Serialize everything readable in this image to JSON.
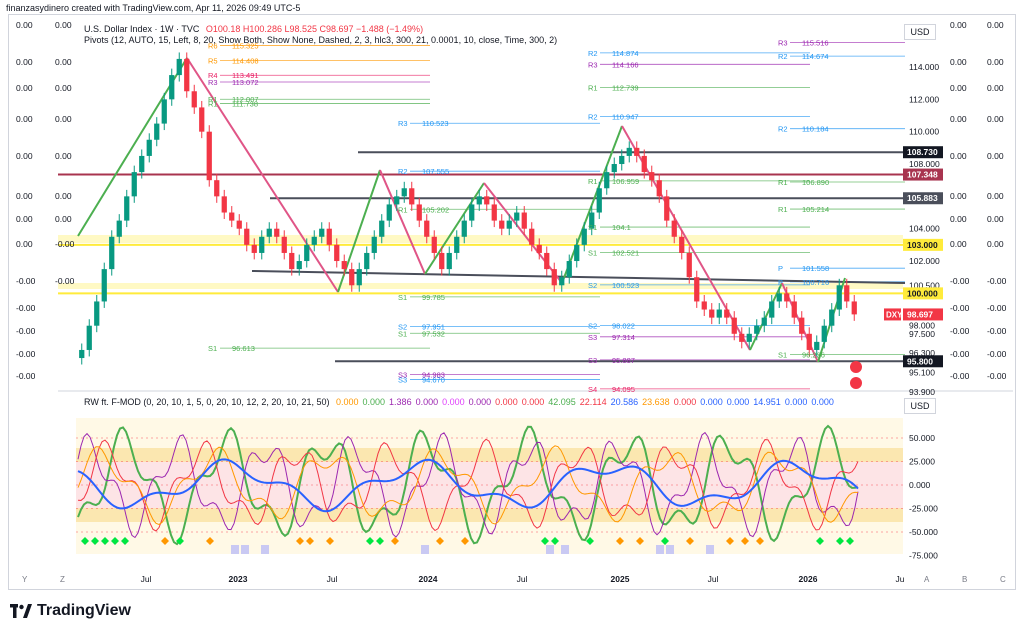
{
  "header_text": "finanzasydinero created with TradingView.com, Apr 11, 2026 09:49 UTC-5",
  "main_title": {
    "symbol": "U.S. Dollar Index · 1W · TVC",
    "ohlc": "O100.18 H100.286 L98.525 C98.697 −1.488 (−1.49%)"
  },
  "pivots_label": "Pivots (12, AUTO, 15, Left, 8, 20, Show Both, Show None, Dashed, 2, 3, hlc3, 300, 21, 0.0001, 10, close, Time, 300, 2)",
  "oscillator_label": "RW ft. F-MOD (0, 20, 10, 1, 5, 0, 20, 10, 12, 2, 20, 10, 21, 50)",
  "oscillator_values": [
    {
      "v": "0.000",
      "c": "#ff9800"
    },
    {
      "v": "0.000",
      "c": "#4caf50"
    },
    {
      "v": "1.386",
      "c": "#9c27b0"
    },
    {
      "v": "0.000",
      "c": "#9c27b0"
    },
    {
      "v": "0.000",
      "c": "#e040fb"
    },
    {
      "v": "0.000",
      "c": "#9c27b0"
    },
    {
      "v": "0.000",
      "c": "#f23645"
    },
    {
      "v": "0.000",
      "c": "#f23645"
    },
    {
      "v": "42.095",
      "c": "#4caf50"
    },
    {
      "v": "22.114",
      "c": "#f23645"
    },
    {
      "v": "20.586",
      "c": "#2962ff"
    },
    {
      "v": "23.638",
      "c": "#ff9800"
    },
    {
      "v": "0.000",
      "c": "#f23645"
    },
    {
      "v": "0.000",
      "c": "#2962ff"
    },
    {
      "v": "0.000",
      "c": "#2962ff"
    },
    {
      "v": "14.951",
      "c": "#2962ff"
    },
    {
      "v": "0.000",
      "c": "#2962ff"
    },
    {
      "v": "0.000",
      "c": "#2962ff"
    }
  ],
  "currency_label": "USD",
  "currency_label_osc": "USD",
  "brand": "TradingView",
  "left_axis_values": [
    "0.00",
    "0.00",
    "0.00",
    "0.00",
    "0.00",
    "0.00",
    "0.00",
    "0.00",
    "-0.00",
    "-0.00",
    "-0.00",
    "-0.00",
    "-0.00",
    "-0.00",
    "-0.00",
    "-0.00",
    "-0.00"
  ],
  "right_axis_values": [
    "0.00",
    "0.00",
    "0.00",
    "0.00",
    "0.00",
    "0.00",
    "0.00",
    "0.00",
    "-0.00",
    "-0.00",
    "-0.00",
    "-0.00",
    "-0.00",
    "-0.00",
    "-0.00",
    "-0.00",
    "-0.00"
  ],
  "bottom_letters_left": [
    "Y",
    "Z"
  ],
  "bottom_letters_right": [
    "A",
    "B",
    "C"
  ],
  "chart_data": {
    "type": "candlestick",
    "symbol": "DXY",
    "timeframe": "1W",
    "x_axis_labels": [
      "Jul",
      "2023",
      "Jul",
      "2024",
      "Jul",
      "2025",
      "Jul",
      "2026",
      "Ju"
    ],
    "y_axis_ticks": [
      "114.000",
      "112.000",
      "110.000",
      "108.000",
      "106.000",
      "104.000",
      "102.000",
      "100.500",
      "98.000",
      "97.500",
      "96.300",
      "95.100",
      "93.900"
    ],
    "ylim": [
      93.9,
      116.5
    ],
    "close_series": [
      96.5,
      98.0,
      99.5,
      101.5,
      103.5,
      104.5,
      106.0,
      107.5,
      108.5,
      109.5,
      110.5,
      112.0,
      113.5,
      114.5,
      112.5,
      111.5,
      110.0,
      107.0,
      106.0,
      105.0,
      104.5,
      104.0,
      103.0,
      102.5,
      103.5,
      104.0,
      103.5,
      102.5,
      101.5,
      102.0,
      103.0,
      103.5,
      104.0,
      103.0,
      102.0,
      101.5,
      100.5,
      101.5,
      102.5,
      103.5,
      104.5,
      105.5,
      106.0,
      106.5,
      105.5,
      104.5,
      103.5,
      102.5,
      101.5,
      102.5,
      103.5,
      104.5,
      105.5,
      106.0,
      105.5,
      104.5,
      104.0,
      104.5,
      105.0,
      104.0,
      103.0,
      102.5,
      101.5,
      100.5,
      101.0,
      102.0,
      103.0,
      104.0,
      105.0,
      106.5,
      107.5,
      108.0,
      108.5,
      109.0,
      108.5,
      107.5,
      107.0,
      106.0,
      104.5,
      103.5,
      102.5,
      101.0,
      99.5,
      99.0,
      98.5,
      99.0,
      98.5,
      97.5,
      97.0,
      97.5,
      98.0,
      98.5,
      99.5,
      100.0,
      99.5,
      98.5,
      97.5,
      96.5,
      97.0,
      98.0,
      99.0,
      100.5,
      99.5,
      98.7
    ],
    "current_price": "98.697",
    "highlighted_prices": [
      {
        "value": "108.730",
        "color": "#131722"
      },
      {
        "value": "107.348",
        "color": "#a8344f"
      },
      {
        "value": "105.883",
        "color": "#4a4e5a"
      },
      {
        "value": "103.000",
        "color": "#ffeb3b"
      },
      {
        "value": "100.000",
        "color": "#ffeb3b"
      },
      {
        "value": "95.800",
        "color": "#131722"
      }
    ],
    "pivot_labels": [
      {
        "name": "R6",
        "value": "115.325"
      },
      {
        "name": "R5",
        "value": "114.408"
      },
      {
        "name": "R4",
        "value": "113.491"
      },
      {
        "name": "R3",
        "value": "113.072"
      },
      {
        "name": "R2",
        "value": "114.874"
      },
      {
        "name": "R3",
        "value": "114.166"
      },
      {
        "name": "R3",
        "value": "115.516"
      },
      {
        "name": "R2",
        "value": "114.674"
      },
      {
        "name": "R1",
        "value": "111.738"
      },
      {
        "name": "R1",
        "value": "112.007"
      },
      {
        "name": "R1",
        "value": "112.739"
      },
      {
        "name": "R2",
        "value": "110.947"
      },
      {
        "name": "R2",
        "value": "110.184"
      },
      {
        "name": "R3",
        "value": "110.523"
      },
      {
        "name": "R2",
        "value": "107.555"
      },
      {
        "name": "R1",
        "value": "106.959"
      },
      {
        "name": "R1",
        "value": "106.890"
      },
      {
        "name": "R1",
        "value": "105.214"
      },
      {
        "name": "R1",
        "value": "105.202"
      },
      {
        "name": "S1",
        "value": "104.1"
      },
      {
        "name": "S1",
        "value": "102.521"
      },
      {
        "name": "P",
        "value": "101.558"
      },
      {
        "name": "P",
        "value": "100.716"
      },
      {
        "name": "S2",
        "value": "100.523"
      },
      {
        "name": "S1",
        "value": "99.785"
      },
      {
        "name": "S2",
        "value": "97.951"
      },
      {
        "name": "S1",
        "value": "97.532"
      },
      {
        "name": "S2",
        "value": "98.022"
      },
      {
        "name": "S3",
        "value": "97.314"
      },
      {
        "name": "S1",
        "value": "96.613"
      },
      {
        "name": "S1",
        "value": "96.226"
      },
      {
        "name": "S3",
        "value": "95.887"
      },
      {
        "name": "S3",
        "value": "94.983"
      },
      {
        "name": "S3",
        "value": "94.670"
      },
      {
        "name": "S4",
        "value": "94.095"
      }
    ],
    "oscillator_ticks": [
      "50.000",
      "25.000",
      "0.000",
      "-25.000",
      "-50.000",
      "-75.000"
    ]
  }
}
